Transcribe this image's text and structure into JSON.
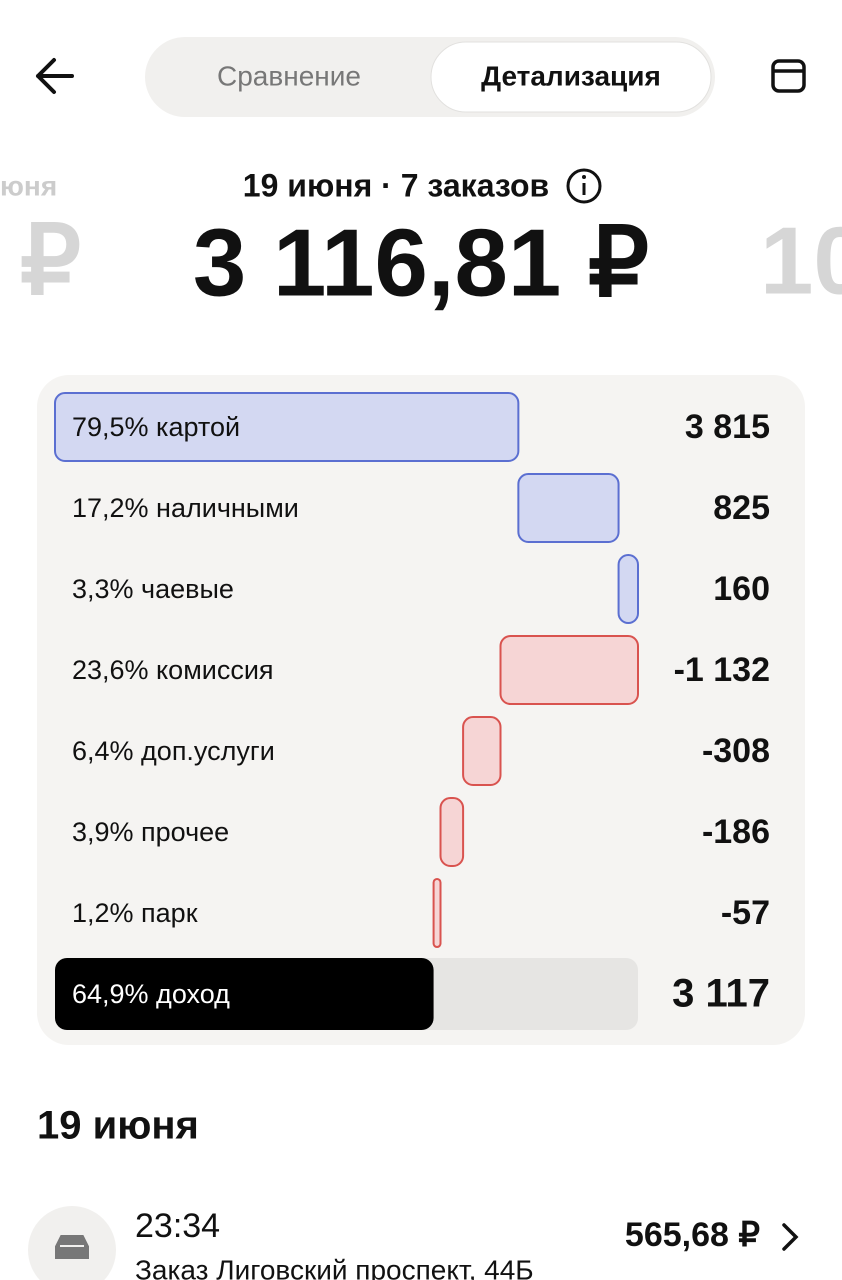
{
  "header": {
    "tabs": [
      "Сравнение",
      "Детализация"
    ],
    "active_tab": 1
  },
  "summary": {
    "subtitle": "19 июня · 7 заказов",
    "amount": "3 116,81 ₽",
    "prev_day": "юня",
    "prev_amount": "₽",
    "next_amount": "10"
  },
  "breakdown": {
    "rows": [
      {
        "label": "79,5% картой",
        "value": 3815,
        "value_label": "3 815"
      },
      {
        "label": "17,2% наличными",
        "value": 825,
        "value_label": "825"
      },
      {
        "label": "3,3% чаевые",
        "value": 160,
        "value_label": "160"
      },
      {
        "label": "23,6% комиссия",
        "value": -1132,
        "value_label": "-1 132"
      },
      {
        "label": "6,4% доп.услуги",
        "value": -308,
        "value_label": "-308"
      },
      {
        "label": "3,9% прочее",
        "value": -186,
        "value_label": "-186"
      },
      {
        "label": "1,2% парк",
        "value": -57,
        "value_label": "-57"
      }
    ],
    "total": {
      "label": "64,9% доход",
      "value": 3117,
      "value_label": "3 117"
    }
  },
  "orders": {
    "date": "19 июня",
    "items": [
      {
        "time": "23:34",
        "title": "Заказ Лиговский проспект, 44Б",
        "price": "565,68 ₽"
      }
    ]
  }
}
